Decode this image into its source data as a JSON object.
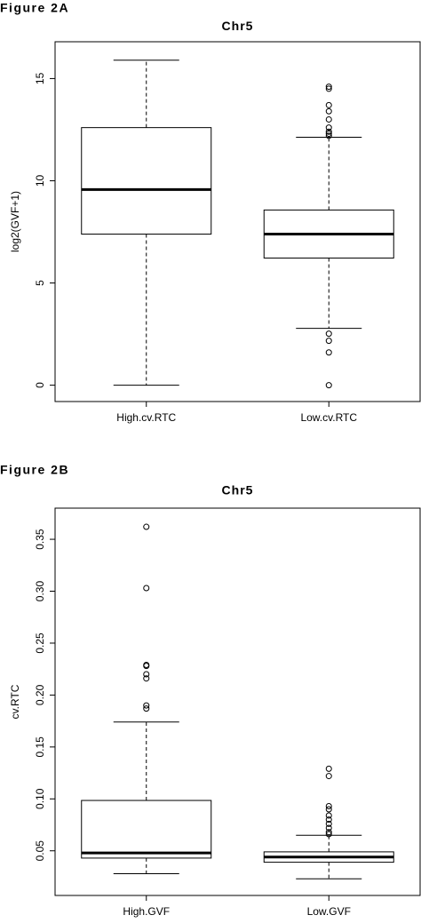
{
  "chart_data": [
    {
      "type": "box",
      "figure_label": "Figure 2A",
      "title": "Chr5",
      "y_label": "log2(GVF+1)",
      "categories": [
        "High.cv.RTC",
        "Low.cv.RTC"
      ],
      "boxes": [
        {
          "whislo": 0,
          "q1": 7.39,
          "median": 9.57,
          "q3": 12.6,
          "whishi": 15.9,
          "outliers": []
        },
        {
          "whislo": 2.78,
          "q1": 6.22,
          "median": 7.39,
          "q3": 8.57,
          "whishi": 12.13,
          "outliers": [
            14.6,
            14.5,
            13.7,
            13.4,
            13.0,
            12.6,
            12.4,
            12.3,
            12.2,
            2.52,
            2.17,
            1.6,
            0
          ]
        }
      ],
      "ylim": [
        -0.8,
        16.8
      ],
      "yticks": [
        0,
        5,
        10,
        15
      ]
    },
    {
      "type": "box",
      "figure_label": "Figure 2B",
      "title": "Chr5",
      "y_label": "cv.RTC",
      "categories": [
        "High.GVF",
        "Low.GVF"
      ],
      "boxes": [
        {
          "whislo": 0.028,
          "q1": 0.043,
          "median": 0.048,
          "q3": 0.0985,
          "whishi": 0.174,
          "outliers": [
            0.362,
            0.303,
            0.229,
            0.228,
            0.22,
            0.216,
            0.19,
            0.187
          ]
        },
        {
          "whislo": 0.023,
          "q1": 0.039,
          "median": 0.044,
          "q3": 0.049,
          "whishi": 0.065,
          "outliers": [
            0.129,
            0.122,
            0.093,
            0.09,
            0.084,
            0.08,
            0.076,
            0.072,
            0.068,
            0.066
          ]
        }
      ],
      "ylim": [
        0.007,
        0.38
      ],
      "yticks": [
        0.05,
        {
          "value": 0.1,
          "label": "0.10"
        },
        0.15,
        {
          "value": 0.2,
          "label": "0.20"
        },
        0.25,
        {
          "value": 0.3,
          "label": "0.30"
        },
        0.35
      ]
    }
  ]
}
